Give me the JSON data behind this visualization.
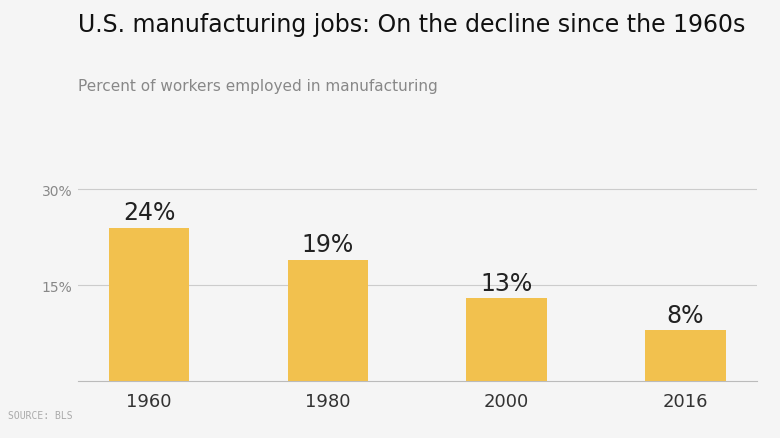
{
  "title": "U.S. manufacturing jobs: On the decline since the 1960s",
  "subtitle": "Percent of workers employed in manufacturing",
  "source": "SOURCE: BLS",
  "categories": [
    "1960",
    "1980",
    "2000",
    "2016"
  ],
  "values": [
    24,
    19,
    13,
    8
  ],
  "labels": [
    "24%",
    "19%",
    "13%",
    "8%"
  ],
  "bar_color": "#F2C14E",
  "background_color": "#f5f5f5",
  "yticks": [
    15,
    30
  ],
  "ytick_labels": [
    "15%",
    "30%"
  ],
  "ylim": [
    0,
    33
  ],
  "title_fontsize": 17,
  "subtitle_fontsize": 11,
  "label_fontsize": 17,
  "xtick_fontsize": 13,
  "ytick_fontsize": 10,
  "source_fontsize": 7
}
